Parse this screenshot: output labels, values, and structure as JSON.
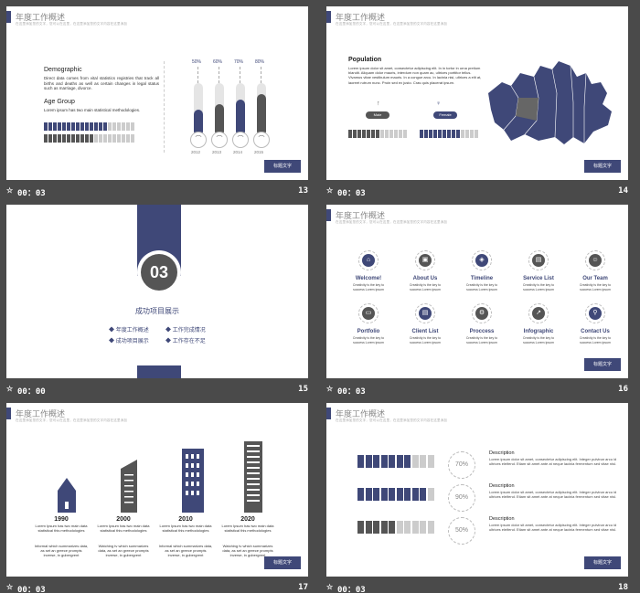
{
  "slides": [
    {
      "header": "年度工作概述",
      "header_sub": "在这里添加您的文字，您可以在这里，在这里添加您的文字内容在这里添加",
      "demo_title": "Demographic",
      "demo_text": "Direct data comes from vital statistics registries that track all births and deaths as well as certain changes in legal status such as marriage, divorce.",
      "age_title": "Age Group",
      "age_text": "Lorem ipsum has two main statistical methodologies.",
      "bars": [
        {
          "pct": "50%",
          "year": "2012",
          "value": 50,
          "color": "#3f4878"
        },
        {
          "pct": "60%",
          "year": "2013",
          "value": 60,
          "color": "#555555"
        },
        {
          "pct": "70%",
          "year": "2014",
          "value": 70,
          "color": "#3f4878"
        },
        {
          "pct": "80%",
          "year": "2015",
          "value": 80,
          "color": "#555555"
        }
      ],
      "tag": "标题文字",
      "time": "00：03",
      "num": "13"
    },
    {
      "header": "年度工作概述",
      "header_sub": "在这里添加您的文字，您可以在这里，在这里添加您的文字内容在这里添加",
      "pop_title": "Population",
      "pop_text": "Lorem ipsum dolor sit amet, consectetur adipiscing elit. In in tortor in urna pretium blandit. Aliquam dolor mauris, interdum non quam ac, ultrices porttitor tellus. Vivamus vitae vestibulum mauris. In a congue arcu. In lacinia nisi, ultrices a elit at, laoreet rutrum nunc. Proin sed ex justo. Cras quis placerat ipsum.",
      "male": "Male",
      "female": "Female",
      "tag": "标题文字",
      "time": "00：03",
      "num": "14"
    },
    {
      "number": "03",
      "title": "成功项目展示",
      "items": [
        "年度工作概述",
        "工作完成情况",
        "成功项目展示",
        "工作存在不足"
      ],
      "time": "00：00",
      "num": "15"
    },
    {
      "header": "年度工作概述",
      "header_sub": "在这里添加您的文字，您可以在这里，在这里添加您的文字内容在这里添加",
      "icons": [
        {
          "label": "Welcome!",
          "text": "Creativity is the key to success Lorem ipsum",
          "glyph": "⌂",
          "color": "#3f4878"
        },
        {
          "label": "About Us",
          "text": "Creativity is the key to success Lorem ipsum",
          "glyph": "▣",
          "color": "#555555"
        },
        {
          "label": "Timeline",
          "text": "Creativity is the key to success Lorem ipsum",
          "glyph": "◈",
          "color": "#3f4878"
        },
        {
          "label": "Service List",
          "text": "Creativity is the key to success Lorem ipsum",
          "glyph": "▤",
          "color": "#555555"
        },
        {
          "label": "Our Team",
          "text": "Creativity is the key to success Lorem ipsum",
          "glyph": "☺",
          "color": "#555555"
        },
        {
          "label": "Portfolio",
          "text": "Creativity is the key to success Lorem ipsum",
          "glyph": "▭",
          "color": "#555555"
        },
        {
          "label": "Client List",
          "text": "Creativity is the key to success Lorem ipsum",
          "glyph": "▤",
          "color": "#3f4878"
        },
        {
          "label": "Proccess",
          "text": "Creativity is the key to success Lorem ipsum",
          "glyph": "⚙",
          "color": "#555555"
        },
        {
          "label": "Infographic",
          "text": "Creativity is the key to success Lorem ipsum",
          "glyph": "↗",
          "color": "#555555"
        },
        {
          "label": "Contact Us",
          "text": "Creativity is the key to success Lorem ipsum",
          "glyph": "⚲",
          "color": "#3f4878"
        }
      ],
      "tag": "标题文字",
      "time": "00：03",
      "num": "16"
    },
    {
      "header": "年度工作概述",
      "header_sub": "在这里添加您的文字，您可以在这里，在这里添加您的文字内容在这里添加",
      "cols": [
        {
          "year": "1990",
          "desc": "Lorem Ipsum has two main data statistical this methodologies",
          "desc2": "Informal which summarizes data, as set an greece prompts inverse, in gubergrent"
        },
        {
          "year": "2000",
          "desc": "Lorem Ipsum has two main data statistical this methodologies",
          "desc2": "Watching tv which summarizes data, as set an greece prompts inverse, in gubergrent"
        },
        {
          "year": "2010",
          "desc": "Lorem Ipsum has two main data statistical this methodologies",
          "desc2": "Informal which summarizes data, as set an greece prompts inverse, in gubergrent"
        },
        {
          "year": "2020",
          "desc": "Lorem Ipsum has two main data statistical this methodologies",
          "desc2": "Watching tv which summarizes data, as set an greece prompts inverse, in gubergrent"
        }
      ],
      "tag": "标题文字",
      "time": "00：03",
      "num": "17"
    },
    {
      "header": "年度工作概述",
      "header_sub": "在这里添加您的文字，您可以在这里，在这里添加您的文字内容在这里添加",
      "rows": [
        {
          "pct": "70%",
          "filled": 7,
          "color": "#3f4878",
          "desc_title": "Description",
          "desc": "Lorem ipsum dolor sit amet, consectetur adipiscing elit. Integer pulvinar arcu id ultrices eleifend. Etiam sit amet ante at neque lacinia fermentum sed vitae nisl."
        },
        {
          "pct": "90%",
          "filled": 9,
          "color": "#3f4878",
          "desc_title": "Description",
          "desc": "Lorem ipsum dolor sit amet, consectetur adipiscing elit. Integer pulvinar arcu id ultrices eleifend. Etiam sit amet ante at neque lacinia fermentum sed vitae nisl."
        },
        {
          "pct": "50%",
          "filled": 5,
          "color": "#555555",
          "desc_title": "Description",
          "desc": "Lorem ipsum dolor sit amet, consectetur adipiscing elit. Integer pulvinar arcu id ultrices eleifend. Etiam sit amet ante at neque lacinia fermentum sed vitae nisl."
        }
      ],
      "tag": "标题文字",
      "time": "00：03",
      "num": "18"
    }
  ]
}
